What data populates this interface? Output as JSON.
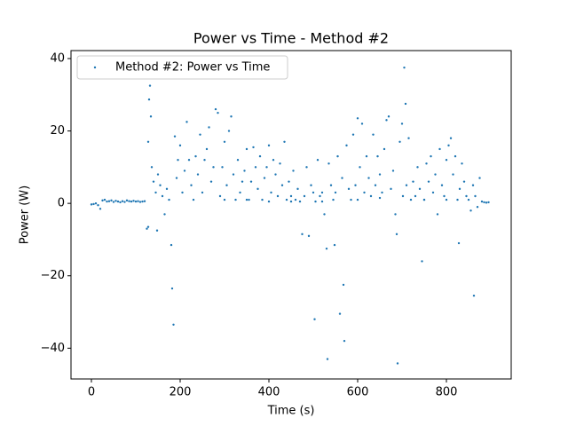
{
  "chart_data": {
    "type": "scatter",
    "title": "Power vs Time - Method #2",
    "xlabel": "Time (s)",
    "ylabel": "Power (W)",
    "x": [
      0,
      5,
      10,
      15,
      20,
      25,
      30,
      35,
      40,
      45,
      50,
      55,
      60,
      65,
      70,
      75,
      80,
      85,
      90,
      95,
      100,
      105,
      110,
      115,
      120,
      125,
      128,
      130,
      132,
      134,
      128,
      136,
      140,
      145,
      148,
      150,
      155,
      160,
      165,
      170,
      175,
      180,
      182,
      185,
      188,
      192,
      195,
      200,
      205,
      210,
      215,
      220,
      225,
      230,
      235,
      240,
      245,
      250,
      255,
      260,
      265,
      270,
      275,
      280,
      285,
      290,
      295,
      300,
      305,
      310,
      315,
      320,
      325,
      330,
      335,
      340,
      345,
      350,
      355,
      360,
      365,
      370,
      375,
      380,
      385,
      390,
      395,
      400,
      405,
      410,
      415,
      420,
      425,
      430,
      435,
      440,
      445,
      450,
      455,
      460,
      465,
      470,
      475,
      480,
      485,
      490,
      495,
      500,
      503,
      505,
      510,
      515,
      520,
      525,
      530,
      532,
      535,
      540,
      545,
      548,
      550,
      555,
      560,
      565,
      568,
      570,
      575,
      580,
      585,
      590,
      595,
      600,
      605,
      610,
      615,
      620,
      625,
      630,
      635,
      640,
      645,
      650,
      655,
      660,
      665,
      670,
      675,
      680,
      685,
      688,
      690,
      695,
      700,
      702,
      705,
      708,
      710,
      715,
      720,
      725,
      730,
      735,
      740,
      745,
      750,
      755,
      760,
      765,
      770,
      775,
      780,
      785,
      790,
      795,
      800,
      805,
      810,
      815,
      820,
      825,
      828,
      830,
      835,
      840,
      845,
      850,
      855,
      860,
      862,
      865,
      870,
      875,
      880,
      885,
      890,
      895,
      300,
      350,
      400,
      450,
      520,
      600,
      650,
      750,
      800
    ],
    "series": [
      {
        "name": "Method #2: Power vs Time",
        "color": "#1f77b4",
        "values": [
          -0.3,
          -0.2,
          0,
          -0.5,
          -1.5,
          0.8,
          1,
          0.5,
          0.6,
          0.8,
          0.4,
          0.7,
          0.5,
          0.3,
          0.6,
          0.4,
          0.8,
          0.6,
          0.5,
          0.7,
          0.5,
          0.6,
          0.4,
          0.5,
          0.6,
          -7,
          -6.5,
          28.7,
          32.5,
          24,
          17,
          10,
          6,
          3,
          -7.5,
          8,
          5,
          2,
          -3,
          4,
          1,
          -11.5,
          -23.5,
          -33.5,
          18.5,
          7,
          12,
          16,
          3,
          9,
          22.5,
          12,
          5,
          1,
          13,
          8,
          19,
          3,
          12,
          15,
          21,
          6,
          10,
          26,
          25,
          2,
          10,
          17,
          5,
          20,
          24,
          8,
          1,
          12,
          3,
          6,
          9,
          15,
          1,
          6,
          15.5,
          10,
          4,
          13,
          1,
          7,
          10,
          16,
          3,
          12,
          8,
          2,
          11,
          5,
          17,
          1,
          6,
          2,
          9,
          1,
          4,
          0.5,
          -8.5,
          2,
          10,
          -9,
          5,
          3,
          -32,
          0.5,
          12,
          2,
          3,
          -3,
          -12.5,
          -43,
          11,
          5,
          1,
          -11.5,
          3,
          13,
          -30.5,
          7,
          -22.5,
          -38,
          16,
          4,
          1,
          19,
          5,
          23.5,
          10,
          22,
          3,
          13,
          7,
          2,
          19,
          5,
          13,
          8,
          3,
          15,
          23,
          24,
          4,
          9,
          -3,
          -8.5,
          -44.2,
          17,
          22,
          2,
          37.5,
          27.5,
          5,
          18,
          1,
          6,
          2,
          10,
          4,
          -16,
          1,
          11,
          6,
          13,
          3,
          8,
          -3,
          15,
          5,
          2,
          12,
          16,
          18,
          8,
          13,
          1,
          -11,
          4,
          11,
          6,
          2,
          1,
          -2,
          5,
          -25.5,
          2,
          -1,
          7,
          0.5,
          0.3,
          0.2,
          0.3,
          1,
          1,
          0.5,
          0.5,
          0.5,
          1,
          1.5,
          1,
          1
        ]
      }
    ],
    "xlim": [
      -46,
      946
    ],
    "ylim": [
      -48.5,
      42.2
    ],
    "xticks": [
      0,
      200,
      400,
      600,
      800
    ],
    "yticks": [
      {
        "value": -40,
        "label": "−40"
      },
      {
        "value": -20,
        "label": "−20"
      },
      0,
      20,
      40
    ],
    "legend": "upper left"
  }
}
